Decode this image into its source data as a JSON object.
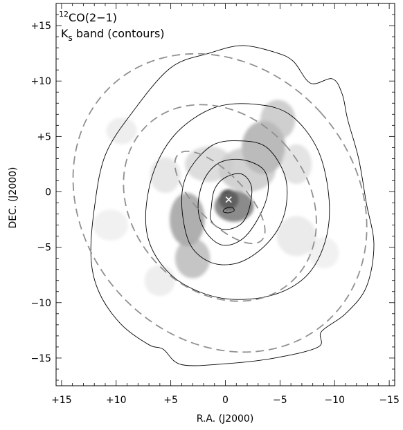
{
  "figure": {
    "legend_line1_sup": "12",
    "legend_line1": "CO(2−1)",
    "legend_line2_main": "K",
    "legend_line2_sub": "s",
    "legend_line2_rest": " band (contours)"
  },
  "chart_data": {
    "type": "heatmap",
    "title": "",
    "xlabel": "R.A. (J2000)",
    "ylabel": "DEC. (J2000)",
    "xlim": [
      15.5,
      -15.5
    ],
    "ylim": [
      -17.5,
      17
    ],
    "x_ticks": [
      15,
      10,
      5,
      0,
      -5,
      -10,
      -15
    ],
    "x_tick_labels": [
      "+15",
      "+10",
      "+5",
      "0",
      "−5",
      "−10",
      "−15"
    ],
    "y_ticks": [
      15,
      10,
      5,
      0,
      -5,
      -10,
      -15
    ],
    "y_tick_labels": [
      "+15",
      "+10",
      "+5",
      "0",
      "−5",
      "−10",
      "−15"
    ],
    "grid": false,
    "colormap": "greyscale",
    "center_marker": {
      "x": -0.3,
      "y": -0.7,
      "symbol": "x"
    },
    "contours": [
      {
        "level": 1,
        "points": [
          [
            -0.3,
            -1.9
          ],
          [
            -0.8,
            -1.7
          ],
          [
            -0.6,
            -1.4
          ],
          [
            0.0,
            -1.5
          ],
          [
            0.2,
            -1.8
          ]
        ]
      },
      {
        "level": 2,
        "points": [
          [
            1.3,
            -1.5
          ],
          [
            1.0,
            0.2
          ],
          [
            0.0,
            1.3
          ],
          [
            -1.5,
            1.6
          ],
          [
            -2.4,
            0.4
          ],
          [
            -2.1,
            -1.8
          ],
          [
            -1.3,
            -3.0
          ],
          [
            0.2,
            -3.4
          ],
          [
            1.3,
            -2.6
          ]
        ]
      },
      {
        "level": 3,
        "points": [
          [
            2.5,
            -1.5
          ],
          [
            2.0,
            1.0
          ],
          [
            0.6,
            2.6
          ],
          [
            -1.5,
            2.9
          ],
          [
            -3.5,
            2.0
          ],
          [
            -3.9,
            0.0
          ],
          [
            -3.0,
            -2.4
          ],
          [
            -1.5,
            -4.3
          ],
          [
            0.3,
            -4.8
          ],
          [
            1.8,
            -3.6
          ]
        ]
      },
      {
        "level": 4,
        "points": [
          [
            4.0,
            -1.0
          ],
          [
            3.4,
            1.8
          ],
          [
            1.2,
            4.2
          ],
          [
            -1.5,
            4.6
          ],
          [
            -3.8,
            4.0
          ],
          [
            -5.4,
            1.6
          ],
          [
            -5.6,
            -1.0
          ],
          [
            -4.8,
            -3.4
          ],
          [
            -3.0,
            -5.4
          ],
          [
            -0.8,
            -6.5
          ],
          [
            1.5,
            -6.3
          ],
          [
            3.3,
            -4.6
          ]
        ]
      },
      {
        "level": 5,
        "points": [
          [
            7.3,
            -2.2
          ],
          [
            6.5,
            2.0
          ],
          [
            4.4,
            5.4
          ],
          [
            1.0,
            7.6
          ],
          [
            -2.8,
            7.9
          ],
          [
            -6.0,
            6.9
          ],
          [
            -8.5,
            3.7
          ],
          [
            -9.5,
            -0.8
          ],
          [
            -9.1,
            -4.6
          ],
          [
            -7.3,
            -7.7
          ],
          [
            -4.0,
            -9.4
          ],
          [
            0.3,
            -9.6
          ],
          [
            4.2,
            -8.1
          ],
          [
            6.6,
            -5.4
          ]
        ]
      },
      {
        "level": 6,
        "points": [
          [
            12.0,
            -1.5
          ],
          [
            11.0,
            3.3
          ],
          [
            8.5,
            7.2
          ],
          [
            5.0,
            11.2
          ],
          [
            1.5,
            12.5
          ],
          [
            -1.5,
            13.2
          ],
          [
            -4.5,
            12.6
          ],
          [
            -6.2,
            11.8
          ],
          [
            -7.8,
            9.8
          ],
          [
            -9.8,
            10.2
          ],
          [
            -10.7,
            8.8
          ],
          [
            -11.2,
            6.5
          ],
          [
            -12.2,
            3.0
          ],
          [
            -12.9,
            -1.0
          ],
          [
            -13.6,
            -4.8
          ],
          [
            -12.9,
            -8.6
          ],
          [
            -11.0,
            -11.0
          ],
          [
            -8.8,
            -12.6
          ],
          [
            -8.5,
            -14.0
          ],
          [
            -4.5,
            -15.0
          ],
          [
            -0.2,
            -15.5
          ],
          [
            4.0,
            -15.6
          ],
          [
            5.7,
            -14.2
          ],
          [
            7.0,
            -13.8
          ],
          [
            9.5,
            -12.0
          ],
          [
            11.5,
            -9.2
          ],
          [
            12.3,
            -6.0
          ]
        ]
      }
    ],
    "model_ellipses": [
      {
        "cx": 0.5,
        "cy": -0.5,
        "rx": 2.2,
        "ry": 5.4,
        "angle_deg": -44
      },
      {
        "cx": 0.5,
        "cy": -1.0,
        "rx": 8.0,
        "ry": 9.6,
        "angle_deg": -42
      },
      {
        "cx": 0.5,
        "cy": -1.0,
        "rx": 12.4,
        "ry": 14.4,
        "angle_deg": -42
      }
    ],
    "emission_blobs": [
      {
        "x": -0.3,
        "y": -0.7,
        "sx": 0.9,
        "sy": 0.9,
        "peak": 1.0
      },
      {
        "x": -0.8,
        "y": -1.3,
        "sx": 1.8,
        "sy": 1.4,
        "peak": 0.6
      },
      {
        "x": 3.5,
        "y": -2.5,
        "sx": 1.6,
        "sy": 2.4,
        "peak": 0.45
      },
      {
        "x": 3.0,
        "y": -6.0,
        "sx": 1.6,
        "sy": 1.8,
        "peak": 0.35
      },
      {
        "x": -3.5,
        "y": 4.0,
        "sx": 2.0,
        "sy": 2.4,
        "peak": 0.4
      },
      {
        "x": -4.8,
        "y": 6.5,
        "sx": 1.6,
        "sy": 1.8,
        "peak": 0.3
      },
      {
        "x": -2.0,
        "y": 2.0,
        "sx": 2.6,
        "sy": 2.0,
        "peak": 0.28
      },
      {
        "x": 1.5,
        "y": 2.5,
        "sx": 2.2,
        "sy": 1.6,
        "peak": 0.22
      },
      {
        "x": -6.5,
        "y": 2.5,
        "sx": 1.4,
        "sy": 1.8,
        "peak": 0.18
      },
      {
        "x": 5.5,
        "y": 1.5,
        "sx": 1.4,
        "sy": 1.6,
        "peak": 0.16
      },
      {
        "x": 9.5,
        "y": 5.5,
        "sx": 1.4,
        "sy": 1.2,
        "peak": 0.12
      },
      {
        "x": -6.5,
        "y": -4.0,
        "sx": 1.8,
        "sy": 1.8,
        "peak": 0.14
      },
      {
        "x": 6.0,
        "y": -8.0,
        "sx": 1.4,
        "sy": 1.4,
        "peak": 0.12
      },
      {
        "x": -9.0,
        "y": -5.5,
        "sx": 1.4,
        "sy": 1.4,
        "peak": 0.1
      },
      {
        "x": 10.5,
        "y": -3.0,
        "sx": 1.6,
        "sy": 1.4,
        "peak": 0.1
      }
    ]
  }
}
